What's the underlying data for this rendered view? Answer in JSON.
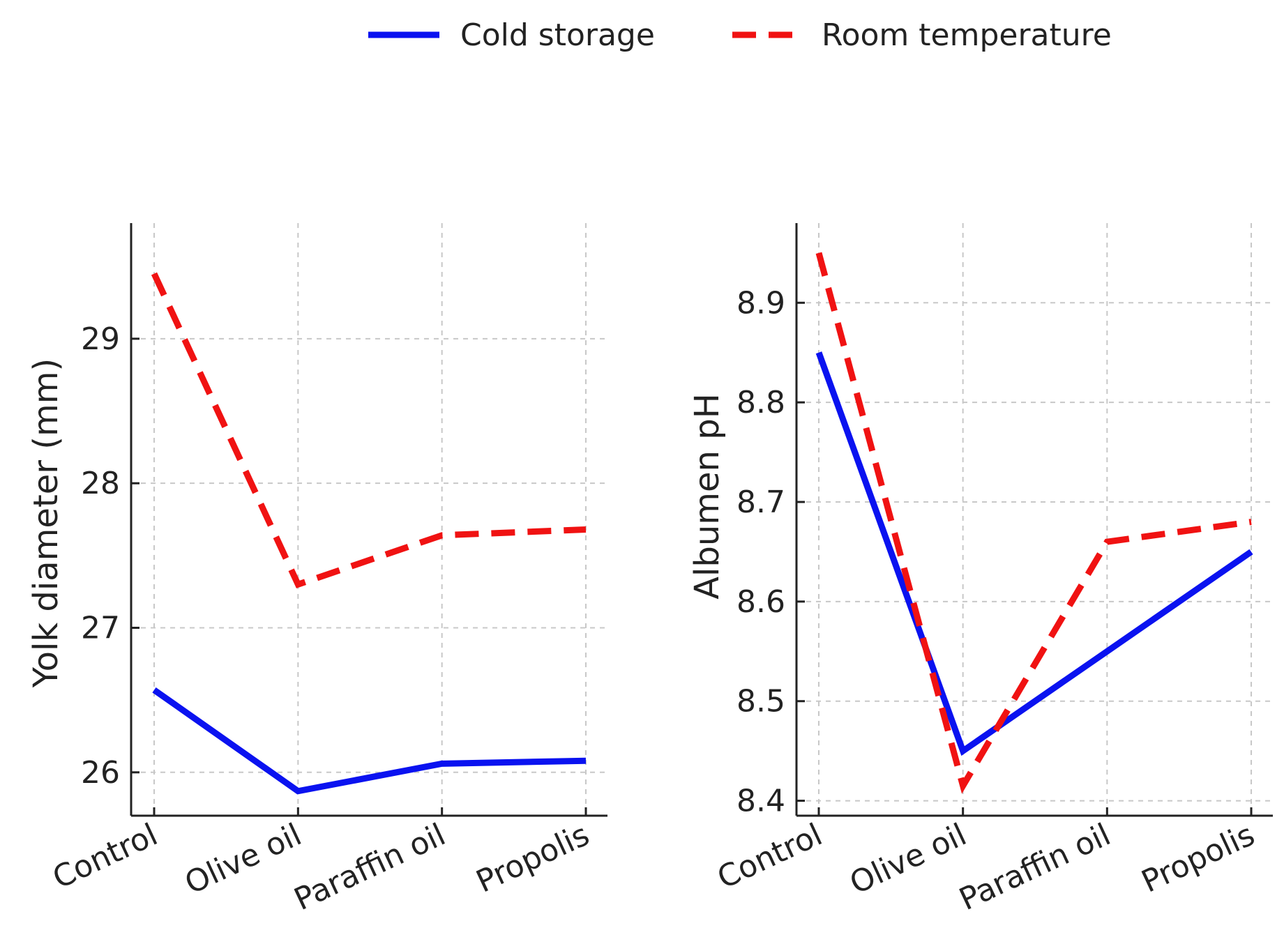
{
  "legend": {
    "entries": [
      {
        "name": "Cold storage",
        "color": "#0a12f0",
        "style": "solid"
      },
      {
        "name": "Room temperature",
        "color": "#f01212",
        "style": "dashed"
      }
    ]
  },
  "chart_data": [
    {
      "type": "line",
      "title": "",
      "xlabel": "",
      "ylabel": "Yolk diameter (mm)",
      "categories": [
        "Control",
        "Olive oil",
        "Paraffin oil",
        "Propolis"
      ],
      "yticks": [
        26,
        27,
        28,
        29
      ],
      "ylim": [
        25.7,
        29.8
      ],
      "grid": true,
      "series": [
        {
          "name": "Cold storage",
          "values": [
            26.57,
            25.87,
            26.06,
            26.08
          ]
        },
        {
          "name": "Room temperature",
          "values": [
            29.45,
            27.3,
            27.64,
            27.68
          ]
        }
      ]
    },
    {
      "type": "line",
      "title": "",
      "xlabel": "",
      "ylabel": "Albumen pH",
      "categories": [
        "Control",
        "Olive oil",
        "Paraffin oil",
        "Propolis"
      ],
      "yticks": [
        8.4,
        8.5,
        8.6,
        8.7,
        8.8,
        8.9
      ],
      "ylim": [
        8.385,
        8.98
      ],
      "grid": true,
      "series": [
        {
          "name": "Cold storage",
          "values": [
            8.85,
            8.45,
            8.55,
            8.65
          ]
        },
        {
          "name": "Room temperature",
          "values": [
            8.95,
            8.415,
            8.66,
            8.68
          ]
        }
      ]
    }
  ]
}
